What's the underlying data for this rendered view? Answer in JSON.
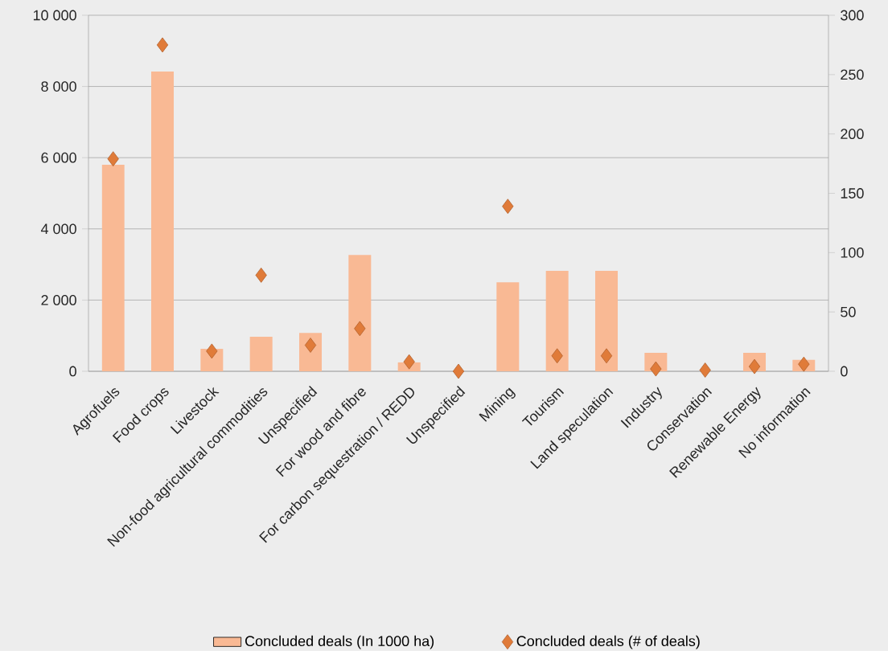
{
  "chart_data": {
    "type": "bar",
    "categories": [
      "Agrofuels",
      "Food crops",
      "Livestock",
      "Non-food agricultural commodities",
      "Unspecified",
      "For wood and fibre",
      "For carbon sequestration / REDD",
      "Unspecified",
      "Mining",
      "Tourism",
      "Land speculation",
      "Industry",
      "Conservation",
      "Renewable Energy",
      "No information"
    ],
    "series": [
      {
        "name": "Concluded deals (In 1000 ha)",
        "color": "#f9b994",
        "values": [
          5800,
          8420,
          630,
          970,
          1080,
          3270,
          250,
          0,
          2500,
          2820,
          2820,
          520,
          0,
          520,
          320
        ]
      },
      {
        "name": "Concluded deals (# of deals)",
        "type": "scatter",
        "axis": "y2",
        "marker": "diamond",
        "color": "#e07b39",
        "values": [
          179,
          275,
          17,
          81,
          22,
          36,
          8,
          0,
          139,
          13,
          13,
          2,
          1,
          4,
          6
        ]
      }
    ],
    "ylim": [
      0,
      10000
    ],
    "yticks": [
      {
        "value": 0,
        "label": "0"
      },
      {
        "value": 2000,
        "label": "2 000"
      },
      {
        "value": 4000,
        "label": "4 000"
      },
      {
        "value": 6000,
        "label": "6 000"
      },
      {
        "value": 8000,
        "label": "8 000"
      },
      {
        "value": 10000,
        "label": "10 000"
      }
    ],
    "y2lim": [
      0,
      300
    ],
    "y2ticks": [
      0,
      50,
      100,
      150,
      200,
      250,
      300
    ],
    "grid": "y",
    "legend": "bottom"
  }
}
